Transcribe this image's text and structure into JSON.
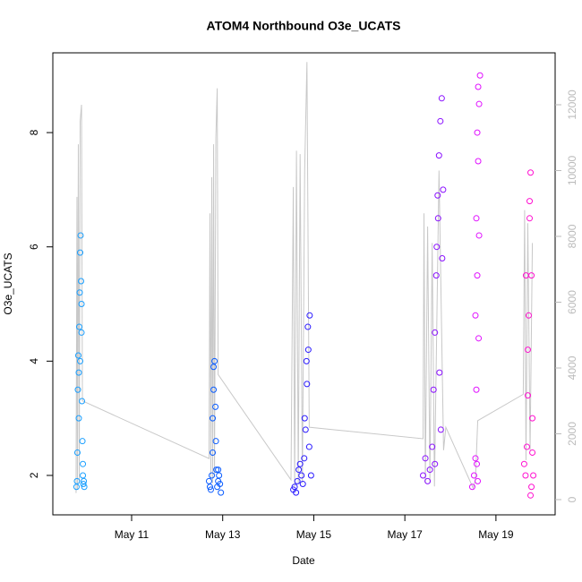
{
  "chart_data": {
    "type": "scatter",
    "title": "ATOM4 Northbound O3e_UCATS",
    "x_label": "Date",
    "y_label": "O3e_UCATS",
    "xlim": [
      9.27,
      20.3
    ],
    "xticks": [
      {
        "value": 11,
        "label": "May 11"
      },
      {
        "value": 13,
        "label": "May 13"
      },
      {
        "value": 15,
        "label": "May 15"
      },
      {
        "value": 17,
        "label": "May 17"
      },
      {
        "value": 19,
        "label": "May 19"
      }
    ],
    "ylim": [
      1.31,
      9.396
    ],
    "yticks": [
      2,
      4,
      6,
      8
    ],
    "y2lim": [
      -463,
      13578
    ],
    "y2ticks": [
      0,
      2000,
      4000,
      6000,
      8000,
      10000,
      12000
    ],
    "series": [
      {
        "type": "line",
        "axis": "y2",
        "color": "#c8c8c8",
        "x": [
          9.78,
          9.8,
          9.81,
          9.83,
          9.85,
          9.87,
          9.9,
          9.92,
          12.7,
          12.72,
          12.74,
          12.76,
          12.78,
          12.8,
          12.82,
          12.85,
          12.88,
          12.9,
          14.5,
          14.55,
          14.58,
          14.62,
          14.66,
          14.7,
          14.75,
          14.8,
          14.85,
          14.9,
          17.4,
          17.42,
          17.45,
          17.5,
          17.55,
          17.6,
          17.65,
          17.75,
          17.85,
          17.9,
          18.5,
          18.55,
          18.6,
          19.6,
          19.63,
          19.66,
          19.7,
          19.75,
          19.8
        ],
        "values": [
          200,
          9200,
          300,
          10800,
          500,
          11500,
          12000,
          3000,
          1250,
          8700,
          600,
          9800,
          500,
          10800,
          700,
          11000,
          12500,
          3800,
          600,
          9500,
          400,
          10600,
          500,
          10500,
          500,
          10000,
          13300,
          2200,
          1850,
          8700,
          500,
          8300,
          500,
          7800,
          400,
          10000,
          1500,
          2200,
          350,
          600,
          2400,
          3200,
          8800,
          1200,
          8400,
          1500,
          7800
        ]
      },
      {
        "type": "scatter",
        "color": "#1a9fff",
        "x": [
          9.79,
          9.8,
          9.81,
          9.82,
          9.83,
          9.84,
          9.85,
          9.86,
          9.87,
          9.88,
          9.89,
          9.9,
          9.91,
          9.92,
          9.93,
          9.94,
          9.95,
          9.96,
          9.84,
          9.87,
          9.9,
          9.93
        ],
        "values": [
          1.8,
          1.9,
          2.4,
          3.5,
          4.1,
          3.8,
          4.6,
          5.2,
          5.9,
          6.2,
          5.4,
          4.5,
          3.3,
          2.6,
          2.0,
          1.85,
          1.9,
          1.8,
          3.0,
          4.0,
          5.0,
          2.2
        ]
      },
      {
        "type": "scatter",
        "color": "#0a5cff",
        "x": [
          12.7,
          12.72,
          12.74,
          12.76,
          12.78,
          12.8,
          12.82,
          12.84,
          12.86,
          12.88,
          12.9,
          12.92,
          12.94,
          12.96,
          12.78,
          12.8,
          12.85,
          12.9
        ],
        "values": [
          1.9,
          1.8,
          1.75,
          2.0,
          2.4,
          3.5,
          4.0,
          3.2,
          2.1,
          1.8,
          1.9,
          2.0,
          1.85,
          1.7,
          3.0,
          3.9,
          2.6,
          2.1
        ]
      },
      {
        "type": "scatter",
        "color": "#2a1aff",
        "x": [
          14.55,
          14.58,
          14.61,
          14.64,
          14.67,
          14.7,
          14.73,
          14.76,
          14.79,
          14.82,
          14.85,
          14.88,
          14.91,
          14.94,
          14.8,
          14.84,
          14.87,
          14.9
        ],
        "values": [
          1.75,
          1.8,
          1.7,
          1.9,
          2.1,
          2.2,
          2.0,
          1.85,
          2.3,
          2.8,
          3.6,
          4.2,
          4.8,
          2.0,
          3.0,
          4.0,
          4.6,
          2.5
        ]
      },
      {
        "type": "scatter",
        "color": "#8a10ff",
        "x": [
          17.4,
          17.45,
          17.5,
          17.55,
          17.6,
          17.63,
          17.66,
          17.69,
          17.72,
          17.75,
          17.78,
          17.81,
          17.84,
          17.7,
          17.73,
          17.76,
          17.79,
          17.82,
          17.66
        ],
        "values": [
          2.0,
          2.3,
          1.9,
          2.1,
          2.5,
          3.5,
          4.5,
          5.5,
          6.9,
          7.6,
          8.2,
          8.6,
          7.0,
          6.0,
          6.5,
          3.8,
          2.8,
          5.8,
          2.2
        ]
      },
      {
        "type": "scatter",
        "color": "#e010ff",
        "x": [
          18.48,
          18.52,
          18.55,
          18.57,
          18.59,
          18.61,
          18.63,
          18.65,
          18.55,
          18.57,
          18.59,
          18.61,
          18.63,
          18.58,
          18.6,
          18.62
        ],
        "values": [
          1.8,
          2.0,
          2.3,
          3.5,
          5.5,
          7.5,
          8.5,
          9.0,
          4.8,
          6.5,
          8.0,
          8.8,
          6.2,
          2.2,
          1.9,
          4.4
        ]
      },
      {
        "type": "scatter",
        "color": "#ff10d0",
        "x": [
          19.62,
          19.65,
          19.68,
          19.7,
          19.72,
          19.74,
          19.76,
          19.78,
          19.8,
          19.82,
          19.66,
          19.7,
          19.74,
          19.78,
          19.8,
          19.76
        ],
        "values": [
          2.2,
          2.0,
          2.5,
          3.4,
          4.8,
          6.5,
          7.3,
          5.5,
          3.0,
          2.0,
          5.5,
          4.2,
          6.8,
          1.8,
          2.4,
          1.65
        ]
      }
    ]
  }
}
